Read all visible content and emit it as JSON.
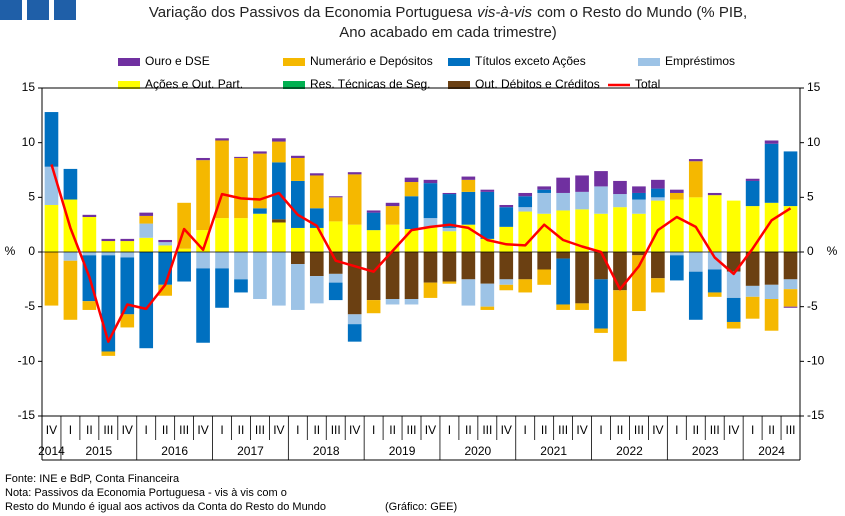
{
  "chart_data": {
    "type": "bar",
    "stacked": true,
    "title": [
      "Variação dos Passivos da Economia Portuguesa",
      "vis-à-vis",
      "com o Resto do Mundo (% PIB,",
      "Ano acabado em cada trimestre)"
    ],
    "ylabel": "%",
    "y2label": "%",
    "categories": [
      "IV",
      "I",
      "II",
      "III",
      "IV",
      "I",
      "II",
      "III",
      "IV",
      "I",
      "II",
      "III",
      "IV",
      "I",
      "II",
      "III",
      "IV",
      "I",
      "II",
      "III",
      "IV",
      "I",
      "II",
      "III",
      "IV",
      "I",
      "II",
      "III",
      "IV",
      "I",
      "II",
      "III",
      "IV",
      "I",
      "II",
      "III",
      "IV",
      "I",
      "II",
      "III"
    ],
    "years": [
      "2014",
      "2015",
      "2015",
      "2015",
      "2015",
      "2016",
      "2016",
      "2016",
      "2016",
      "2017",
      "2017",
      "2017",
      "2017",
      "2018",
      "2018",
      "2018",
      "2018",
      "2019",
      "2019",
      "2019",
      "2019",
      "2020",
      "2020",
      "2020",
      "2020",
      "2021",
      "2021",
      "2021",
      "2021",
      "2022",
      "2022",
      "2022",
      "2022",
      "2023",
      "2023",
      "2023",
      "2023",
      "2024",
      "2024",
      "2024"
    ],
    "ylim": [
      -15,
      15
    ],
    "yticks": [
      -15,
      -10,
      -5,
      0,
      5,
      10,
      15
    ],
    "y2lim": [
      -15,
      15
    ],
    "y2ticks": [
      -15,
      -10,
      -5,
      0,
      5,
      10,
      15
    ],
    "series": [
      {
        "name": "Ouro e DSE",
        "color": "#7030a0",
        "values": [
          0,
          0,
          0.2,
          0.2,
          0.2,
          0.3,
          0.2,
          0,
          0.2,
          0.2,
          0.1,
          0.2,
          0.3,
          0.2,
          0.2,
          0.1,
          0.2,
          0.2,
          0.3,
          0.4,
          0.3,
          0.1,
          0.3,
          0.2,
          0.2,
          0.3,
          0.3,
          1.4,
          1.5,
          1.4,
          1.2,
          0.6,
          0.8,
          0.3,
          0.2,
          0.2,
          0,
          0.2,
          0.3,
          -0.1
        ]
      },
      {
        "name": "Numerário e Depósitos",
        "color": "#f5b800",
        "values": [
          -4.9,
          -5.4,
          -0.8,
          -0.4,
          -1.2,
          0.7,
          -1.0,
          4.2,
          6.4,
          7.1,
          5.5,
          5.0,
          1.9,
          2.1,
          3.0,
          2.2,
          4.6,
          -1.2,
          1.7,
          1.3,
          -1.4,
          -0.2,
          1.1,
          -0.3,
          -0.5,
          -1.2,
          -1.4,
          -0.5,
          -0.6,
          -0.4,
          -6.5,
          -5.1,
          -1.3,
          0.6,
          3.3,
          -0.4,
          -0.6,
          -2.0,
          -2.9,
          -1.6
        ]
      },
      {
        "name": "Títulos exceto Ações",
        "color": "#0070c0",
        "values": [
          5.0,
          2.8,
          -4.2,
          -8.8,
          -5.2,
          -8.8,
          -3.0,
          -2.7,
          -6.8,
          -3.6,
          -1.2,
          0.5,
          5.2,
          4.3,
          1.8,
          -1.6,
          -1.6,
          1.6,
          0,
          3.0,
          3.2,
          3.1,
          3.0,
          4.3,
          1.8,
          1.0,
          0.3,
          -4.2,
          0,
          -4.5,
          0,
          0.6,
          0.8,
          -2.3,
          -4.4,
          -2.1,
          -2.2,
          2.3,
          5.4,
          5.0
        ]
      },
      {
        "name": "Empréstimos",
        "color": "#9dc3e6",
        "values": [
          3.5,
          -0.8,
          -0.3,
          -0.3,
          -0.5,
          1.3,
          0.3,
          0,
          -1.5,
          -1.5,
          -2.5,
          -4.3,
          -4.9,
          -4.2,
          -2.5,
          -0.8,
          -0.9,
          0,
          -0.5,
          -0.5,
          0.8,
          0.3,
          -2.4,
          -2.1,
          -0.5,
          0.4,
          1.9,
          1.6,
          1.6,
          2.5,
          1.2,
          1.3,
          0.3,
          -0.3,
          -1.8,
          -1.6,
          -2.4,
          -1.0,
          -1.3,
          -0.9
        ]
      },
      {
        "name": "Ações e Out. Part.",
        "color": "#ffff00",
        "values": [
          4.3,
          4.8,
          3.2,
          1.0,
          1.0,
          1.3,
          0.6,
          0.3,
          2.0,
          3.1,
          3.1,
          3.5,
          2.7,
          2.2,
          2.2,
          2.8,
          2.5,
          2.0,
          2.5,
          2.1,
          2.3,
          1.9,
          2.5,
          1.2,
          2.3,
          3.7,
          3.5,
          3.8,
          3.9,
          3.5,
          4.1,
          3.5,
          4.7,
          4.8,
          5.0,
          5.2,
          4.7,
          4.2,
          4.5,
          4.2
        ]
      },
      {
        "name": "Res. Técnicas de Seg.",
        "color": "#00b050",
        "values": [
          0,
          0,
          0,
          0,
          0,
          0,
          0,
          0,
          0,
          0,
          0,
          0,
          0,
          0,
          0,
          0,
          0,
          0,
          0,
          0,
          0,
          0,
          0,
          0,
          0,
          0,
          0,
          0,
          0,
          0,
          0,
          0,
          0,
          0,
          0,
          0,
          0,
          0,
          0,
          0
        ]
      },
      {
        "name": "Out. Débitos e Créditos",
        "color": "#6b4012",
        "values": [
          0,
          0,
          0,
          0,
          0,
          0,
          0,
          0,
          0,
          0,
          0,
          0,
          0.3,
          -1.1,
          -2.2,
          -2.0,
          -5.7,
          -4.4,
          -4.3,
          -4.3,
          -2.8,
          -2.7,
          -2.5,
          -2.9,
          -2.5,
          -2.5,
          -1.6,
          -0.6,
          -4.7,
          -2.5,
          -3.5,
          -0.3,
          -2.4,
          0,
          0,
          0,
          -1.8,
          -3.1,
          -3.0,
          -2.5
        ]
      },
      {
        "name": "Total",
        "type": "line",
        "color": "#ff0000",
        "values": [
          8.0,
          2.2,
          -2.3,
          -8.2,
          -4.8,
          -5.2,
          -3.0,
          2.1,
          0.2,
          5.3,
          4.9,
          4.8,
          5.4,
          3.4,
          2.4,
          -0.8,
          -1.3,
          -1.8,
          0.1,
          2.0,
          2.3,
          2.5,
          2.2,
          1.1,
          0.7,
          0.6,
          2.5,
          1.1,
          0.5,
          0.0,
          -3.4,
          -1.3,
          2.0,
          3.2,
          2.3,
          -0.5,
          -2.0,
          0.3,
          2.9,
          4.0
        ]
      }
    ],
    "notes": [
      "Fonte: INE e BdP, Conta Financeira",
      "Nota: Passivos da Economia Portuguesa - vis à vis com o",
      "Resto do Mundo é igual aos activos da Conta do Resto do Mundo",
      "(Gráfico: GEE)"
    ]
  }
}
